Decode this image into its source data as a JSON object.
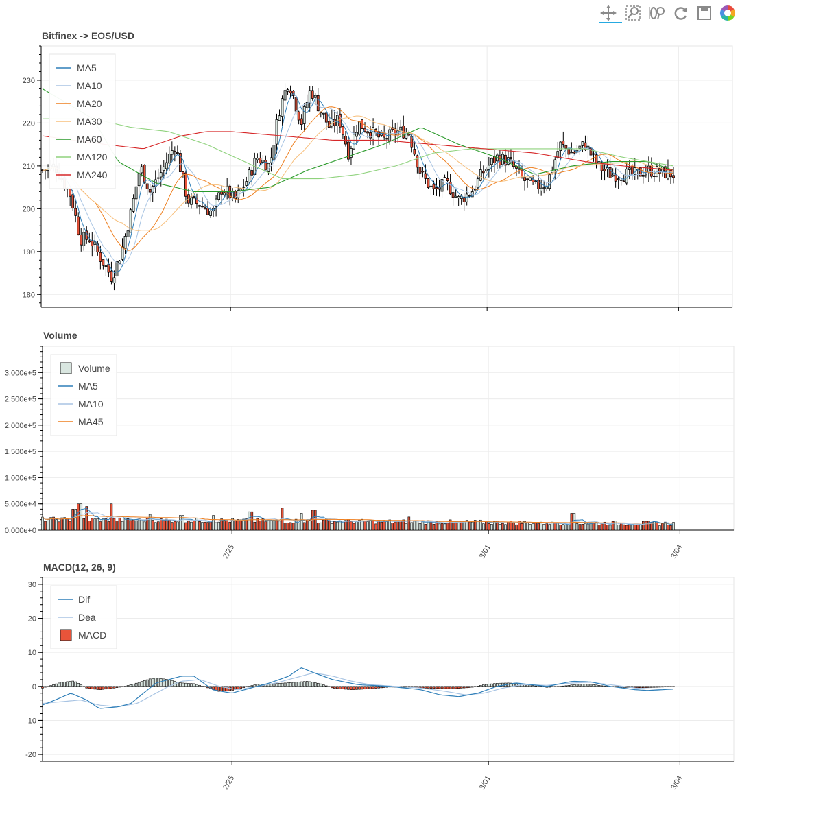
{
  "toolbar": {
    "tools": [
      {
        "name": "pan",
        "icon": "move-arrows-icon",
        "active": true
      },
      {
        "name": "box-zoom",
        "icon": "magnifier-box-icon"
      },
      {
        "name": "wheel-zoom",
        "icon": "wheel-zoom-icon"
      },
      {
        "name": "reset",
        "icon": "reset-icon"
      },
      {
        "name": "save",
        "icon": "save-icon"
      },
      {
        "name": "bokeh-logo",
        "icon": "bokeh-logo-icon"
      }
    ]
  },
  "colors": {
    "up_fill": "#d9e6e0",
    "down_fill": "#e9543a",
    "ma5": "#2f7fb8",
    "ma10": "#a8c4e3",
    "ma20": "#ee7f1f",
    "ma30": "#f7bf7c",
    "ma60": "#2a9a2a",
    "ma120": "#8fd27d",
    "ma240": "#d62728",
    "ma45": "#ee7f1f",
    "dif": "#2f7fb8",
    "dea": "#a8c4e3"
  },
  "chart_data": [
    {
      "type": "candlestick",
      "title": "Bitfinex -> EOS/USD",
      "ylim": [
        177,
        238
      ],
      "yticks": [
        180,
        190,
        200,
        210,
        220,
        230
      ],
      "x_ticks": [
        {
          "x": 0.274,
          "label": ""
        },
        {
          "x": 0.645,
          "label": ""
        },
        {
          "x": 0.922,
          "label": ""
        }
      ],
      "grid": true,
      "legend_position": "top-left",
      "legend": [
        "MA5",
        "MA10",
        "MA20",
        "MA30",
        "MA60",
        "MA120",
        "MA240"
      ],
      "price_keypoints": [
        [
          0,
          209
        ],
        [
          0.02,
          210
        ],
        [
          0.045,
          203
        ],
        [
          0.06,
          193
        ],
        [
          0.075,
          193
        ],
        [
          0.09,
          189
        ],
        [
          0.11,
          184
        ],
        [
          0.125,
          190
        ],
        [
          0.14,
          199
        ],
        [
          0.155,
          210
        ],
        [
          0.17,
          204
        ],
        [
          0.19,
          209
        ],
        [
          0.21,
          215
        ],
        [
          0.23,
          202
        ],
        [
          0.25,
          201
        ],
        [
          0.27,
          199
        ],
        [
          0.285,
          205
        ],
        [
          0.305,
          202
        ],
        [
          0.325,
          207
        ],
        [
          0.34,
          212
        ],
        [
          0.36,
          210
        ],
        [
          0.375,
          223
        ],
        [
          0.39,
          230
        ],
        [
          0.41,
          220
        ],
        [
          0.425,
          228
        ],
        [
          0.44,
          223
        ],
        [
          0.455,
          219
        ],
        [
          0.47,
          221
        ],
        [
          0.485,
          213
        ],
        [
          0.5,
          220
        ],
        [
          0.52,
          218
        ],
        [
          0.54,
          216
        ],
        [
          0.56,
          218
        ],
        [
          0.58,
          218
        ],
        [
          0.6,
          208
        ],
        [
          0.62,
          204
        ],
        [
          0.64,
          206
        ],
        [
          0.66,
          202
        ],
        [
          0.68,
          204
        ],
        [
          0.7,
          209
        ],
        [
          0.72,
          212
        ],
        [
          0.74,
          211
        ],
        [
          0.76,
          207
        ],
        [
          0.78,
          205
        ],
        [
          0.8,
          206
        ],
        [
          0.82,
          215
        ],
        [
          0.84,
          213
        ],
        [
          0.86,
          215
        ],
        [
          0.88,
          210
        ],
        [
          0.9,
          208
        ],
        [
          0.92,
          208
        ],
        [
          0.94,
          208
        ],
        [
          0.96,
          209
        ],
        [
          1,
          208
        ]
      ],
      "ma60_keypoints": [
        [
          0,
          228
        ],
        [
          0.08,
          221
        ],
        [
          0.12,
          211
        ],
        [
          0.18,
          206
        ],
        [
          0.24,
          204
        ],
        [
          0.3,
          204
        ],
        [
          0.36,
          205
        ],
        [
          0.42,
          209
        ],
        [
          0.48,
          212
        ],
        [
          0.54,
          215
        ],
        [
          0.6,
          219
        ],
        [
          0.66,
          215
        ],
        [
          0.72,
          212
        ],
        [
          0.78,
          208
        ],
        [
          0.84,
          210
        ],
        [
          0.9,
          211
        ],
        [
          0.96,
          211
        ],
        [
          1,
          209
        ]
      ],
      "ma120_keypoints": [
        [
          0,
          221
        ],
        [
          0.08,
          221
        ],
        [
          0.14,
          219
        ],
        [
          0.2,
          218
        ],
        [
          0.26,
          215
        ],
        [
          0.32,
          211
        ],
        [
          0.38,
          207
        ],
        [
          0.44,
          207
        ],
        [
          0.5,
          208
        ],
        [
          0.56,
          210
        ],
        [
          0.62,
          213
        ],
        [
          0.68,
          214
        ],
        [
          0.74,
          214
        ],
        [
          0.8,
          214
        ],
        [
          0.86,
          214
        ],
        [
          0.92,
          212
        ],
        [
          0.96,
          211
        ],
        [
          1,
          210
        ]
      ],
      "ma240_keypoints": [
        [
          0,
          217
        ],
        [
          0.1,
          215
        ],
        [
          0.16,
          214
        ],
        [
          0.22,
          217
        ],
        [
          0.26,
          218
        ],
        [
          0.3,
          218
        ],
        [
          0.38,
          217
        ],
        [
          0.46,
          216
        ],
        [
          0.54,
          216
        ],
        [
          0.62,
          215
        ],
        [
          0.7,
          214
        ],
        [
          0.78,
          213
        ],
        [
          0.86,
          211
        ],
        [
          0.92,
          210
        ],
        [
          0.96,
          209.5
        ],
        [
          1,
          209
        ]
      ]
    },
    {
      "type": "bar",
      "title": "Volume",
      "ylim": [
        0,
        350000
      ],
      "yticks": [
        0,
        50000,
        100000,
        150000,
        200000,
        250000,
        300000
      ],
      "ytick_labels": [
        "0.000e+0",
        "5.000e+4",
        "1.000e+5",
        "1.500e+5",
        "2.000e+5",
        "2.500e+5",
        "3.000e+5"
      ],
      "x_ticks": [
        {
          "x": 0.274,
          "label": "2/25"
        },
        {
          "x": 0.645,
          "label": "3/01"
        },
        {
          "x": 0.922,
          "label": "3/04"
        }
      ],
      "grid": true,
      "legend_position": "top-left",
      "legend": [
        "Volume",
        "MA5",
        "MA10",
        "MA45"
      ],
      "spikes": [
        [
          0.05,
          40000
        ],
        [
          0.06,
          50000
        ],
        [
          0.07,
          45000
        ],
        [
          0.11,
          50000
        ],
        [
          0.17,
          30000
        ],
        [
          0.22,
          28000
        ],
        [
          0.27,
          28000
        ],
        [
          0.33,
          35000
        ],
        [
          0.38,
          42000
        ],
        [
          0.41,
          32000
        ],
        [
          0.43,
          38000
        ],
        [
          0.58,
          25000
        ],
        [
          0.84,
          32000
        ]
      ]
    },
    {
      "type": "macd",
      "title": "MACD(12, 26, 9)",
      "ylim": [
        -22,
        32
      ],
      "yticks": [
        -20,
        -10,
        0,
        10,
        20,
        30
      ],
      "x_ticks": [
        {
          "x": 0.274,
          "label": "2/25"
        },
        {
          "x": 0.645,
          "label": "3/01"
        },
        {
          "x": 0.922,
          "label": "3/04"
        }
      ],
      "grid": true,
      "legend_position": "top-left",
      "legend": [
        "Dif",
        "Dea",
        "MACD"
      ],
      "dif_keypoints": [
        [
          0,
          -5.5
        ],
        [
          0.02,
          -4
        ],
        [
          0.045,
          -2
        ],
        [
          0.07,
          -4
        ],
        [
          0.09,
          -6.5
        ],
        [
          0.12,
          -6
        ],
        [
          0.14,
          -5
        ],
        [
          0.16,
          -2
        ],
        [
          0.18,
          1
        ],
        [
          0.2,
          2
        ],
        [
          0.22,
          3
        ],
        [
          0.24,
          3
        ],
        [
          0.27,
          -1
        ],
        [
          0.3,
          -2
        ],
        [
          0.33,
          -0.5
        ],
        [
          0.36,
          1
        ],
        [
          0.39,
          3
        ],
        [
          0.41,
          5.5
        ],
        [
          0.43,
          4
        ],
        [
          0.46,
          2
        ],
        [
          0.5,
          0.5
        ],
        [
          0.55,
          0
        ],
        [
          0.6,
          -1
        ],
        [
          0.63,
          -2.5
        ],
        [
          0.66,
          -3
        ],
        [
          0.69,
          -2
        ],
        [
          0.72,
          0
        ],
        [
          0.75,
          1
        ],
        [
          0.8,
          0
        ],
        [
          0.84,
          1.5
        ],
        [
          0.87,
          1.3
        ],
        [
          0.9,
          0
        ],
        [
          0.94,
          -1
        ],
        [
          0.96,
          -1.2
        ],
        [
          1,
          -0.8
        ]
      ],
      "dea_keypoints": [
        [
          0,
          -5
        ],
        [
          0.03,
          -4.5
        ],
        [
          0.06,
          -4
        ],
        [
          0.09,
          -5.5
        ],
        [
          0.12,
          -6
        ],
        [
          0.15,
          -5
        ],
        [
          0.18,
          -2
        ],
        [
          0.2,
          0
        ],
        [
          0.22,
          1.5
        ],
        [
          0.25,
          2
        ],
        [
          0.28,
          0
        ],
        [
          0.31,
          -1
        ],
        [
          0.34,
          0
        ],
        [
          0.37,
          1
        ],
        [
          0.4,
          2.5
        ],
        [
          0.43,
          4
        ],
        [
          0.46,
          3
        ],
        [
          0.49,
          1.5
        ],
        [
          0.52,
          0.5
        ],
        [
          0.56,
          0
        ],
        [
          0.6,
          -0.5
        ],
        [
          0.64,
          -1.5
        ],
        [
          0.67,
          -2.5
        ],
        [
          0.7,
          -2
        ],
        [
          0.73,
          -0.5
        ],
        [
          0.76,
          0.5
        ],
        [
          0.8,
          0.3
        ],
        [
          0.84,
          1
        ],
        [
          0.87,
          1.2
        ],
        [
          0.9,
          0.5
        ],
        [
          0.94,
          -0.5
        ],
        [
          0.97,
          -0.8
        ],
        [
          1,
          -0.8
        ]
      ],
      "hist_keypoints": [
        [
          0,
          -0.5
        ],
        [
          0.03,
          1.2
        ],
        [
          0.05,
          1.6
        ],
        [
          0.07,
          -0.5
        ],
        [
          0.09,
          -1
        ],
        [
          0.11,
          -0.6
        ],
        [
          0.13,
          0
        ],
        [
          0.15,
          1
        ],
        [
          0.17,
          2.2
        ],
        [
          0.18,
          2.5
        ],
        [
          0.2,
          2
        ],
        [
          0.22,
          1
        ],
        [
          0.24,
          0.8
        ],
        [
          0.26,
          -0.3
        ],
        [
          0.28,
          -1.5
        ],
        [
          0.3,
          -1.2
        ],
        [
          0.32,
          -0.3
        ],
        [
          0.34,
          0.6
        ],
        [
          0.37,
          0.8
        ],
        [
          0.4,
          1.2
        ],
        [
          0.42,
          1.5
        ],
        [
          0.44,
          0.8
        ],
        [
          0.46,
          -0.5
        ],
        [
          0.49,
          -1
        ],
        [
          0.52,
          -0.7
        ],
        [
          0.55,
          -0.2
        ],
        [
          0.58,
          -0.3
        ],
        [
          0.62,
          -0.6
        ],
        [
          0.65,
          -0.7
        ],
        [
          0.68,
          -0.3
        ],
        [
          0.7,
          0.5
        ],
        [
          0.72,
          0.9
        ],
        [
          0.74,
          1
        ],
        [
          0.77,
          0.4
        ],
        [
          0.8,
          -0.3
        ],
        [
          0.83,
          0.2
        ],
        [
          0.85,
          0.7
        ],
        [
          0.87,
          0.6
        ],
        [
          0.89,
          0.1
        ],
        [
          0.92,
          -0.3
        ],
        [
          0.95,
          -0.4
        ],
        [
          1,
          -0.1
        ]
      ]
    }
  ]
}
